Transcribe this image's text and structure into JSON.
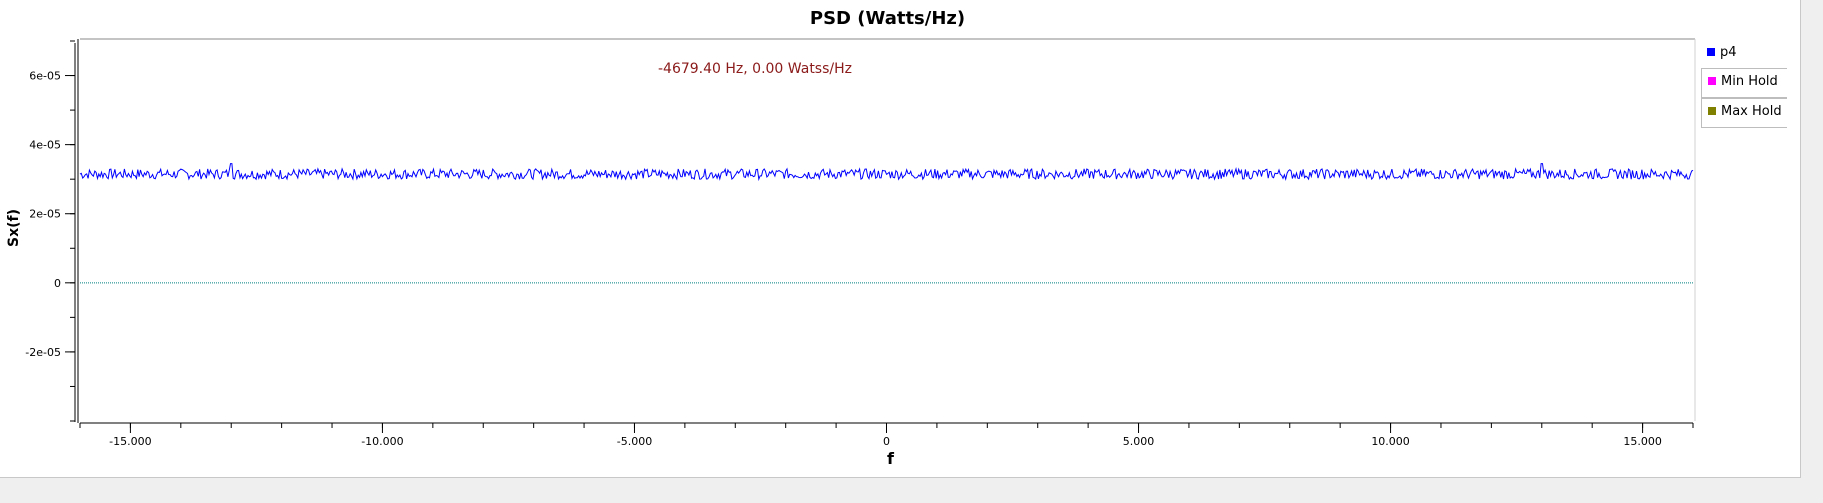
{
  "chart_data": {
    "type": "line",
    "title": "PSD (Watts/Hz)",
    "xlabel": "f",
    "ylabel": "Sx(f)",
    "xlim": [
      -16000,
      16000
    ],
    "ylim": [
      -4e-05,
      7e-05
    ],
    "x_ticks": [
      -15000,
      -10000,
      -5000,
      0,
      5000,
      10000,
      15000
    ],
    "x_tick_labels": [
      "-15.000",
      "-10.000",
      "-5.000",
      "0",
      "5.000",
      "10.000",
      "15.000"
    ],
    "y_ticks": [
      6e-05,
      4e-05,
      2e-05,
      0,
      -2e-05
    ],
    "y_tick_labels": [
      "6e-05",
      "4e-05",
      "2e-05",
      "0",
      "-2e-05"
    ],
    "grid": false,
    "legend_position": "right",
    "series": [
      {
        "name": "p4",
        "color": "#0000ff",
        "baseline": 3.15e-05,
        "noise_amplitude": 1.5e-06,
        "peaks_x": [
          -13000,
          13000
        ],
        "peak_value": 3.45e-05
      },
      {
        "name": "Min Hold",
        "color": "#ff00ff"
      },
      {
        "name": "Max Hold",
        "color": "#808000"
      }
    ],
    "zero_line_color": "#008080",
    "annotation": "-4679.40 Hz, 0.00 Watss/Hz"
  }
}
